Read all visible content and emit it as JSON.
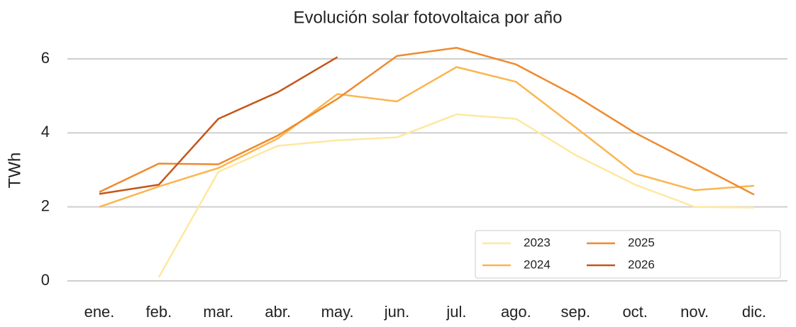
{
  "chart_data": {
    "type": "line",
    "title": "Evolución solar fotovoltaica por año",
    "y_label": "TWh",
    "categories": [
      "ene.",
      "feb.",
      "mar.",
      "abr.",
      "may.",
      "jun.",
      "jul.",
      "ago.",
      "sep.",
      "oct.",
      "nov.",
      "dic."
    ],
    "series": [
      {
        "name": "2023",
        "color": "#fee8a0",
        "values": [
          null,
          0.1,
          2.95,
          3.65,
          3.8,
          3.88,
          4.5,
          4.38,
          3.4,
          2.6,
          2.0,
          1.98
        ]
      },
      {
        "name": "2024",
        "color": "#fbb54f",
        "values": [
          2.0,
          2.55,
          3.05,
          3.85,
          5.05,
          4.85,
          5.78,
          5.38,
          4.15,
          2.9,
          2.45,
          2.57
        ]
      },
      {
        "name": "2025",
        "color": "#ef8a2e",
        "values": [
          2.4,
          3.17,
          3.15,
          3.93,
          4.92,
          6.08,
          6.3,
          5.85,
          5.0,
          4.0,
          3.17,
          2.33
        ]
      },
      {
        "name": "2026",
        "color": "#c4561a",
        "values": [
          2.35,
          2.6,
          4.38,
          5.1,
          6.05,
          null,
          null,
          null,
          null,
          null,
          null,
          null
        ]
      }
    ],
    "ylim": [
      -0.3,
      6.7
    ],
    "yticks": [
      0,
      2,
      4,
      6
    ],
    "grid": true,
    "legend": "lower right"
  }
}
